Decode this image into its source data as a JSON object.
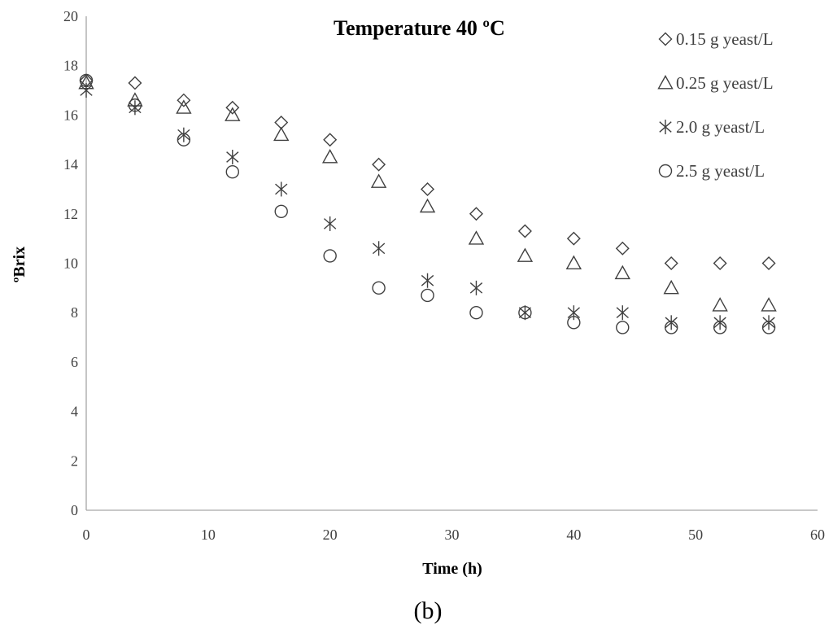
{
  "chart_data": {
    "type": "scatter",
    "title": "Temperature  40 ºC",
    "xlabel": "Time (h)",
    "ylabel": "ºBrix",
    "panel_label": "(b)",
    "xlim": [
      0,
      60
    ],
    "ylim": [
      0,
      20
    ],
    "xticks": [
      0,
      10,
      20,
      30,
      40,
      50,
      60
    ],
    "yticks": [
      0,
      2,
      4,
      6,
      8,
      10,
      12,
      14,
      16,
      18,
      20
    ],
    "grid": false,
    "legend_position": "top-right",
    "x": [
      0,
      4,
      8,
      12,
      16,
      20,
      24,
      28,
      32,
      36,
      40,
      44,
      48,
      52,
      56
    ],
    "series": [
      {
        "name": "0.15 g yeast/L",
        "marker": "diamond",
        "values": [
          17.4,
          17.3,
          16.6,
          16.3,
          15.7,
          15.0,
          14.0,
          13.0,
          12.0,
          11.3,
          11.0,
          10.6,
          10.0,
          10.0,
          10.0
        ]
      },
      {
        "name": "0.25 g yeast/L",
        "marker": "triangle",
        "values": [
          17.3,
          16.6,
          16.3,
          16.0,
          15.2,
          14.3,
          13.3,
          12.3,
          11.0,
          10.3,
          10.0,
          9.6,
          9.0,
          8.3,
          8.3
        ]
      },
      {
        "name": "2.0 g yeast/L",
        "marker": "asterisk",
        "values": [
          17.0,
          16.3,
          15.2,
          14.3,
          13.0,
          11.6,
          10.6,
          9.3,
          9.0,
          8.0,
          8.0,
          8.0,
          7.6,
          7.6,
          7.6
        ]
      },
      {
        "name": "2.5 g yeast/L",
        "marker": "circle",
        "values": [
          17.4,
          16.4,
          15.0,
          13.7,
          12.1,
          10.3,
          9.0,
          8.7,
          8.0,
          8.0,
          7.6,
          7.4,
          7.4,
          7.4,
          7.4
        ]
      }
    ]
  }
}
